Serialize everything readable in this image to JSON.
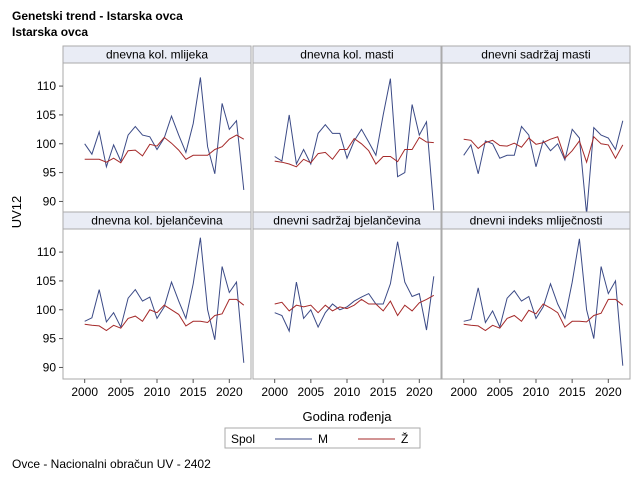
{
  "header": {
    "title": "Genetski trend - Istarska ovca",
    "subtitle": "Istarska ovca"
  },
  "footnote": "Ovce - Nacionalni obračun UV - 2402",
  "colors": {
    "M": "#3b4a86",
    "Z": "#a52a2a",
    "panel_border": "#aaaaaa",
    "panel_header_bg": "#e9ecf5"
  },
  "chart_data": {
    "type": "line",
    "xlabel": "Godina rođenja",
    "ylabel": "UV12",
    "xlim": [
      1997,
      2023
    ],
    "ylim": [
      88,
      114
    ],
    "xticks": [
      2000,
      2005,
      2010,
      2015,
      2020
    ],
    "yticks": [
      90,
      95,
      100,
      105,
      110
    ],
    "legend": {
      "title": "Spol",
      "position": "bottom",
      "entries": [
        {
          "key": "M",
          "label": "M"
        },
        {
          "key": "Z",
          "label": "Ž"
        }
      ]
    },
    "x": [
      2000,
      2001,
      2002,
      2003,
      2004,
      2005,
      2006,
      2007,
      2008,
      2009,
      2010,
      2011,
      2012,
      2013,
      2014,
      2015,
      2016,
      2017,
      2018,
      2019,
      2020,
      2021,
      2022
    ],
    "panels": [
      {
        "title": "dnevna kol. mlijeka",
        "series": [
          {
            "name": "M",
            "values": [
              100.0,
              98.2,
              102.1,
              96.0,
              99.8,
              97.0,
              101.5,
              103.0,
              101.5,
              101.2,
              99.0,
              101.0,
              104.8,
              101.5,
              98.5,
              103.5,
              111.5,
              99.5,
              94.8,
              107.0,
              102.5,
              104.0,
              92.0
            ]
          },
          {
            "name": "Ž",
            "values": [
              97.3,
              97.3,
              97.3,
              96.8,
              97.5,
              96.7,
              98.8,
              98.9,
              97.9,
              99.9,
              99.6,
              101.1,
              100.1,
              98.9,
              97.3,
              98.0,
              98.0,
              98.0,
              99.0,
              99.5,
              100.8,
              101.5,
              100.8
            ]
          }
        ]
      },
      {
        "title": "dnevna kol. masti",
        "series": [
          {
            "name": "M",
            "values": [
              97.8,
              97.0,
              105.0,
              96.5,
              99.0,
              96.5,
              101.8,
              103.3,
              101.8,
              101.8,
              97.5,
              100.5,
              102.5,
              100.3,
              98.0,
              105.0,
              111.3,
              94.3,
              95.0,
              106.8,
              101.5,
              103.8,
              88.5
            ]
          },
          {
            "name": "Ž",
            "values": [
              97.0,
              96.8,
              96.5,
              96.0,
              97.3,
              96.7,
              98.3,
              98.5,
              97.3,
              99.0,
              99.0,
              100.9,
              100.0,
              98.8,
              96.5,
              97.8,
              97.8,
              96.9,
              99.0,
              99.0,
              101.1,
              100.3,
              100.2
            ]
          }
        ]
      },
      {
        "title": "dnevni sadržaj masti",
        "series": [
          {
            "name": "M",
            "values": [
              98.0,
              99.8,
              94.8,
              100.5,
              100.0,
              97.5,
              98.0,
              98.0,
              103.0,
              101.5,
              96.0,
              100.5,
              98.8,
              100.0,
              97.2,
              102.5,
              101.0,
              87.8,
              102.8,
              101.5,
              101.0,
              99.0,
              104.0
            ]
          },
          {
            "name": "Ž",
            "values": [
              100.8,
              100.6,
              99.2,
              100.2,
              100.6,
              99.7,
              99.6,
              100.1,
              99.4,
              101.0,
              99.9,
              100.2,
              100.8,
              101.2,
              97.5,
              98.8,
              100.5,
              96.8,
              101.2,
              100.0,
              99.8,
              97.5,
              99.8
            ]
          }
        ]
      },
      {
        "title": "dnevna kol. bjelančevina",
        "series": [
          {
            "name": "M",
            "values": [
              98.0,
              98.6,
              103.5,
              97.9,
              99.5,
              97.0,
              102.0,
              103.5,
              101.5,
              102.2,
              98.5,
              100.5,
              104.8,
              101.5,
              98.5,
              104.5,
              112.5,
              100.0,
              94.8,
              107.5,
              103.0,
              104.8,
              90.8
            ]
          },
          {
            "name": "Ž",
            "values": [
              97.5,
              97.3,
              97.2,
              96.4,
              97.3,
              96.8,
              98.5,
              98.9,
              98.0,
              100.0,
              99.5,
              100.8,
              100.0,
              99.2,
              97.2,
              98.0,
              98.0,
              97.8,
              99.0,
              99.3,
              101.8,
              101.8,
              100.8
            ]
          }
        ]
      },
      {
        "title": "dnevni sadržaj bjelančevina",
        "series": [
          {
            "name": "M",
            "values": [
              99.5,
              99.0,
              96.3,
              104.8,
              98.5,
              100.0,
              97.0,
              99.5,
              101.0,
              100.0,
              100.5,
              101.5,
              102.2,
              102.8,
              101.0,
              101.0,
              104.5,
              111.8,
              104.8,
              102.3,
              102.8,
              96.5,
              105.8
            ]
          },
          {
            "name": "Ž",
            "values": [
              101.0,
              101.3,
              99.8,
              100.8,
              100.5,
              100.8,
              99.5,
              100.8,
              99.8,
              100.5,
              100.2,
              100.8,
              101.8,
              101.0,
              101.0,
              99.8,
              101.5,
              99.0,
              100.8,
              99.8,
              101.2,
              101.8,
              102.5
            ]
          }
        ]
      },
      {
        "title": "dnevni indeks mliječnosti",
        "series": [
          {
            "name": "M",
            "values": [
              98.0,
              98.3,
              103.8,
              97.8,
              99.8,
              97.0,
              102.0,
              103.3,
              101.5,
              102.3,
              98.5,
              100.5,
              104.5,
              101.0,
              98.5,
              104.8,
              112.3,
              100.0,
              95.0,
              107.5,
              102.8,
              105.0,
              90.3
            ]
          },
          {
            "name": "Ž",
            "values": [
              97.5,
              97.3,
              97.2,
              96.4,
              97.3,
              96.8,
              98.5,
              99.0,
              98.0,
              99.9,
              99.3,
              101.0,
              100.3,
              99.5,
              97.0,
              98.0,
              98.0,
              97.9,
              99.0,
              99.4,
              101.8,
              101.8,
              100.8
            ]
          }
        ]
      }
    ]
  }
}
